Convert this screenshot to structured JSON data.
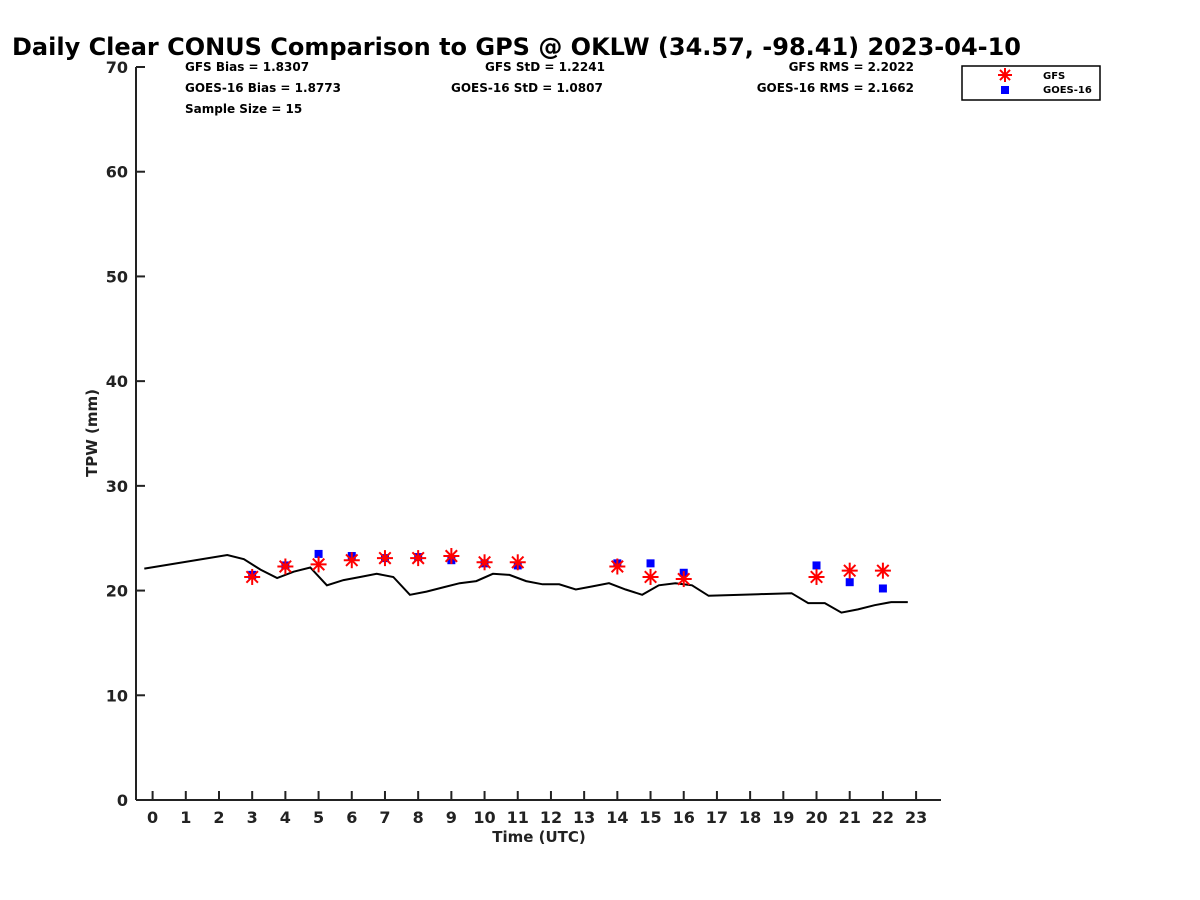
{
  "chart_data": {
    "type": "scatter",
    "title": "Daily Clear CONUS Comparison to GPS @ OKLW (34.57, -98.41) 2023-04-10",
    "xlabel": "Time (UTC)",
    "ylabel": "TPW (mm)",
    "xlim": [
      -0.5,
      23.75
    ],
    "ylim": [
      0,
      70
    ],
    "xticks": [
      0,
      1,
      2,
      3,
      4,
      5,
      6,
      7,
      8,
      9,
      10,
      11,
      12,
      13,
      14,
      15,
      16,
      17,
      18,
      19,
      20,
      21,
      22,
      23
    ],
    "yticks": [
      0,
      10,
      20,
      30,
      40,
      50,
      60,
      70
    ],
    "grid": false,
    "legend_position": "top-right",
    "stats": {
      "gfs_bias": "GFS Bias = 1.8307",
      "goes_bias": "GOES-16 Bias = 1.8773",
      "sample_size": "Sample Size = 15",
      "gfs_std": "GFS StD = 1.2241",
      "goes_std": "GOES-16 StD = 1.0807",
      "gfs_rms": "GFS RMS = 2.2022",
      "goes_rms": "GOES-16 RMS = 2.1662"
    },
    "series": [
      {
        "name": "GFS",
        "marker": "asterisk",
        "color": "#ff0000",
        "x": [
          3,
          4,
          5,
          6,
          7,
          8,
          9,
          10,
          11,
          14,
          15,
          16,
          20,
          21,
          22
        ],
        "y": [
          21.3,
          22.3,
          22.5,
          22.9,
          23.1,
          23.1,
          23.3,
          22.7,
          22.7,
          22.3,
          21.3,
          21.1,
          21.3,
          21.9,
          21.9
        ]
      },
      {
        "name": "GOES-16",
        "marker": "square",
        "color": "#0000ff",
        "x": [
          3,
          4,
          5,
          6,
          7,
          8,
          9,
          10,
          11,
          14,
          15,
          16,
          20,
          21,
          22
        ],
        "y": [
          21.5,
          22.4,
          23.5,
          23.3,
          23.1,
          23.2,
          22.9,
          22.6,
          22.4,
          22.6,
          22.6,
          21.7,
          22.4,
          20.8,
          20.2
        ]
      },
      {
        "name": "GPS",
        "marker": "line",
        "color": "#000000",
        "x": [
          -0.25,
          2.25,
          2.75,
          3.25,
          3.75,
          4.25,
          4.75,
          5.25,
          5.75,
          6.25,
          6.75,
          7.25,
          7.75,
          8.25,
          8.75,
          9.25,
          9.75,
          10.25,
          10.75,
          11.25,
          11.75,
          12.25,
          12.75,
          13.25,
          13.75,
          14.25,
          14.75,
          15.25,
          15.75,
          16.25,
          16.75,
          17.25,
          17.75,
          18.25,
          18.75,
          19.25,
          19.75,
          20.25,
          20.75,
          21.25,
          21.75,
          22.25,
          22.75
        ],
        "y": [
          22.1,
          23.4,
          23.0,
          22.0,
          21.2,
          21.8,
          22.2,
          20.5,
          21.0,
          21.3,
          21.6,
          21.3,
          19.6,
          19.9,
          20.3,
          20.7,
          20.9,
          21.6,
          21.5,
          20.9,
          20.6,
          20.6,
          20.1,
          20.4,
          20.7,
          20.1,
          19.6,
          20.5,
          20.7,
          20.5,
          19.5,
          19.55,
          19.6,
          19.65,
          19.7,
          19.75,
          18.8,
          18.8,
          17.9,
          18.2,
          18.6,
          18.9,
          18.9
        ]
      }
    ]
  }
}
